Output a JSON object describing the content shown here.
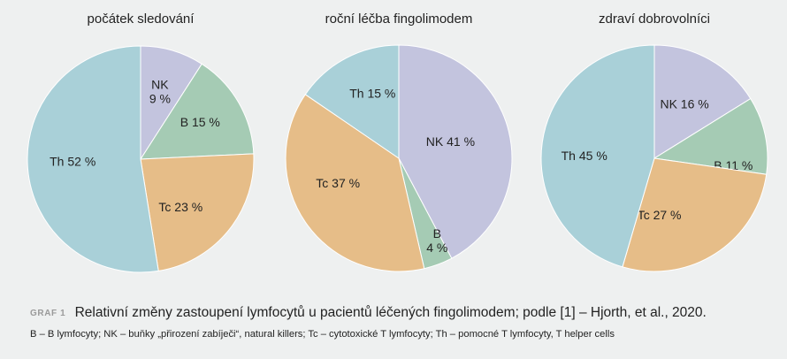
{
  "chart_data": [
    {
      "type": "pie",
      "title": "počátek sledování",
      "slices": [
        {
          "label": "NK",
          "value_label": "9 %",
          "value": 9,
          "color": "#c3c4de"
        },
        {
          "label": "B",
          "value_label": "15 %",
          "value": 15,
          "color": "#a5cbb4"
        },
        {
          "label": "Tc",
          "value_label": "23 %",
          "value": 23,
          "color": "#e6bd88"
        },
        {
          "label": "Th",
          "value_label": "52 %",
          "value": 52,
          "color": "#a9d0d8"
        }
      ]
    },
    {
      "type": "pie",
      "title": "roční léčba fingolimodem",
      "slices": [
        {
          "label": "NK",
          "value_label": "41 %",
          "value": 41,
          "color": "#c3c4de"
        },
        {
          "label": "B",
          "value_label": "4 %",
          "value": 4,
          "color": "#a5cbb4"
        },
        {
          "label": "Tc",
          "value_label": "37 %",
          "value": 37,
          "color": "#e6bd88"
        },
        {
          "label": "Th",
          "value_label": "15 %",
          "value": 15,
          "color": "#a9d0d8"
        }
      ]
    },
    {
      "type": "pie",
      "title": "zdraví dobrovolníci",
      "slices": [
        {
          "label": "NK",
          "value_label": "16 %",
          "value": 16,
          "color": "#c3c4de"
        },
        {
          "label": "B",
          "value_label": "11 %",
          "value": 11,
          "color": "#a5cbb4"
        },
        {
          "label": "Tc",
          "value_label": "27 %",
          "value": 27,
          "color": "#e6bd88"
        },
        {
          "label": "Th",
          "value_label": "45 %",
          "value": 45,
          "color": "#a9d0d8"
        }
      ]
    }
  ],
  "caption": {
    "tag": "GRAF 1",
    "text": "Relativní změny zastoupení lymfocytů u pacientů léčených fingolimodem; podle [1] – Hjorth, et al., 2020."
  },
  "legend_text": "B – B lymfocyty; NK – buňky „přirození zabíječi“, natural killers; Tc – cytotoxické T lymfocyty; Th – pomocné T lymfocyty, T helper cells"
}
